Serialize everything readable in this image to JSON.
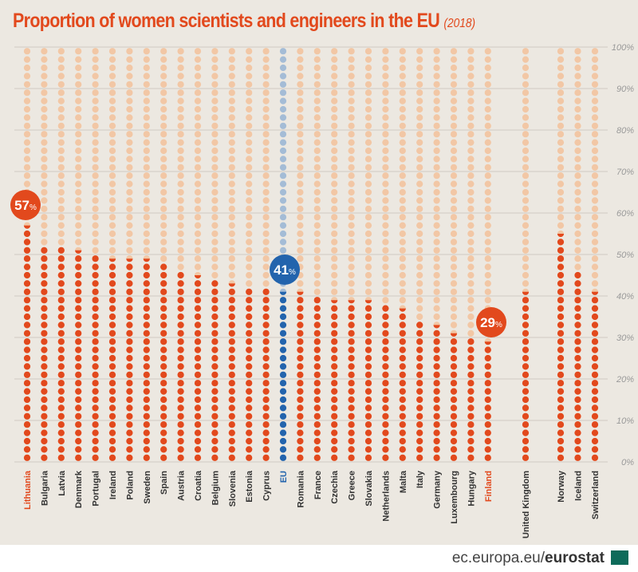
{
  "title": "Proportion of women scientists and engineers in the EU",
  "title_year": "(2018)",
  "footer": {
    "domain": "ec.europa.eu/",
    "brand": "eurostat"
  },
  "colors": {
    "filled": "#e2491d",
    "empty": "#f2c7a5",
    "eu_filled": "#2364ad",
    "eu_empty": "#a4bcd6",
    "label_default": "#333333",
    "highlight": "#e2491d"
  },
  "chart_data": {
    "type": "bar",
    "style": "dot-columns",
    "title": "Proportion of women scientists and engineers in the EU (2018)",
    "ylim": [
      0,
      100
    ],
    "yticks": [
      "0%",
      "10%",
      "20%",
      "30%",
      "40%",
      "50%",
      "60%",
      "70%",
      "80%",
      "90%",
      "100%"
    ],
    "grid": true,
    "categories": [
      "Lithuania",
      "Bulgaria",
      "Latvia",
      "Denmark",
      "Portugal",
      "Ireland",
      "Poland",
      "Sweden",
      "Spain",
      "Austria",
      "Croatia",
      "Belgium",
      "Slovenia",
      "Estonia",
      "Cyprus",
      "EU",
      "Romania",
      "France",
      "Czechia",
      "Greece",
      "Slovakia",
      "Netherlands",
      "Malta",
      "Italy",
      "Germany",
      "Luxembourg",
      "Hungary",
      "Finland",
      "United Kingdom",
      "Norway",
      "Iceland",
      "Switzerland"
    ],
    "values": [
      57,
      52,
      52,
      51,
      50,
      49,
      49,
      49,
      48,
      46,
      45,
      44,
      43,
      42,
      42,
      41,
      41,
      40,
      39,
      39,
      39,
      38,
      37,
      34,
      33,
      31,
      30,
      29,
      41,
      55,
      46,
      41
    ],
    "callouts": [
      {
        "category": "Lithuania",
        "text": "57",
        "unit": "%"
      },
      {
        "category": "EU",
        "text": "41",
        "unit": "%"
      },
      {
        "category": "Finland",
        "text": "29",
        "unit": "%"
      }
    ]
  }
}
